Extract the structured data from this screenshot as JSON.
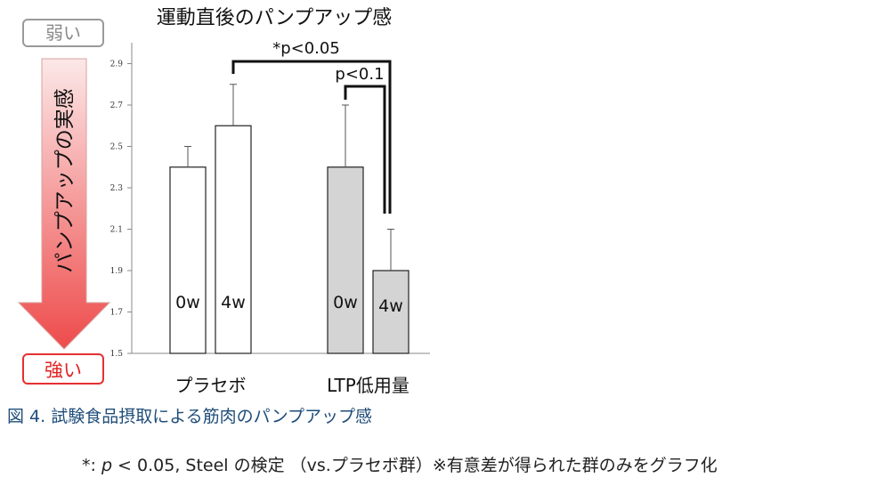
{
  "chart_data": {
    "type": "bar",
    "title": "運動直後のパンプアップ感",
    "groups": [
      "プラセボ",
      "LTP低用量"
    ],
    "bars": [
      {
        "group": "プラセボ",
        "label": "0w",
        "value": 2.4,
        "error": 0.1
      },
      {
        "group": "プラセボ",
        "label": "4w",
        "value": 2.6,
        "error": 0.2
      },
      {
        "group": "LTP低用量",
        "label": "0w",
        "value": 2.4,
        "error": 0.3
      },
      {
        "group": "LTP低用量",
        "label": "4w",
        "value": 1.9,
        "error": 0.2
      }
    ],
    "ylim": [
      1.5,
      3.0
    ],
    "yticks": [
      "1.5",
      "1.7",
      "1.9",
      "2.1",
      "2.3",
      "2.5",
      "2.7",
      "2.9"
    ],
    "colors": {
      "placebo_fill": "#ffffff",
      "ltp_fill": "#d4d4d4",
      "bar_stroke": "#222222",
      "arrow_top": "#fce8e8",
      "arrow_bottom": "#ee4b4b"
    },
    "annotations": [
      "*p<0.05",
      "p<0.1"
    ],
    "scale_labels": {
      "top": "弱い",
      "bottom": "強い",
      "arrow": "パンプアップの実感"
    }
  },
  "caption": "図 4.  試験食品摂取による筋肉のパンプアップ感",
  "footnote": {
    "prefix": "*: ",
    "p": "p",
    "rest": " < 0.05, Steel の検定  （vs.プラセボ群）※有意差が得られた群のみをグラフ化"
  }
}
